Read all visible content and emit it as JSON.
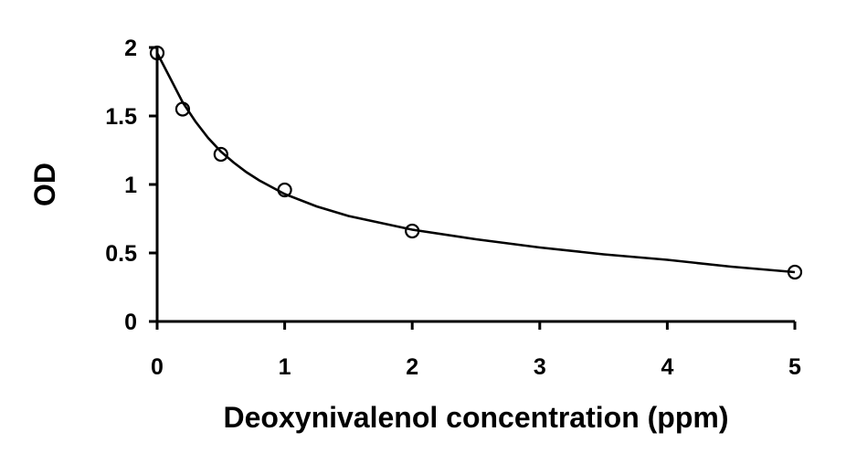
{
  "chart_data": {
    "type": "scatter",
    "xlabel": "Deoxynivalenol concentration (ppm)",
    "ylabel": "OD",
    "xlim": [
      0,
      5
    ],
    "ylim": [
      0,
      2
    ],
    "x_ticks": [
      "0",
      "1",
      "2",
      "3",
      "4",
      "5"
    ],
    "y_ticks": [
      "0",
      "0.5",
      "1",
      "1.5",
      "2"
    ],
    "grid": false,
    "legend": "none",
    "marker": "open-circle",
    "points": [
      {
        "x": 0,
        "y": 1.96
      },
      {
        "x": 0.2,
        "y": 1.55
      },
      {
        "x": 0.5,
        "y": 1.22
      },
      {
        "x": 1,
        "y": 0.96
      },
      {
        "x": 2,
        "y": 0.66
      },
      {
        "x": 5,
        "y": 0.36
      }
    ],
    "fit_curve": [
      {
        "x": 0,
        "y": 1.96
      },
      {
        "x": 0.1,
        "y": 1.78
      },
      {
        "x": 0.2,
        "y": 1.6
      },
      {
        "x": 0.3,
        "y": 1.46
      },
      {
        "x": 0.4,
        "y": 1.34
      },
      {
        "x": 0.5,
        "y": 1.24
      },
      {
        "x": 0.6,
        "y": 1.16
      },
      {
        "x": 0.7,
        "y": 1.09
      },
      {
        "x": 0.8,
        "y": 1.03
      },
      {
        "x": 1,
        "y": 0.93
      },
      {
        "x": 1.25,
        "y": 0.84
      },
      {
        "x": 1.5,
        "y": 0.77
      },
      {
        "x": 1.75,
        "y": 0.72
      },
      {
        "x": 2,
        "y": 0.67
      },
      {
        "x": 2.5,
        "y": 0.6
      },
      {
        "x": 3,
        "y": 0.54
      },
      {
        "x": 3.5,
        "y": 0.49
      },
      {
        "x": 4,
        "y": 0.45
      },
      {
        "x": 4.5,
        "y": 0.4
      },
      {
        "x": 5,
        "y": 0.36
      }
    ],
    "colors": {
      "line": "#000000",
      "background": "#ffffff"
    }
  }
}
